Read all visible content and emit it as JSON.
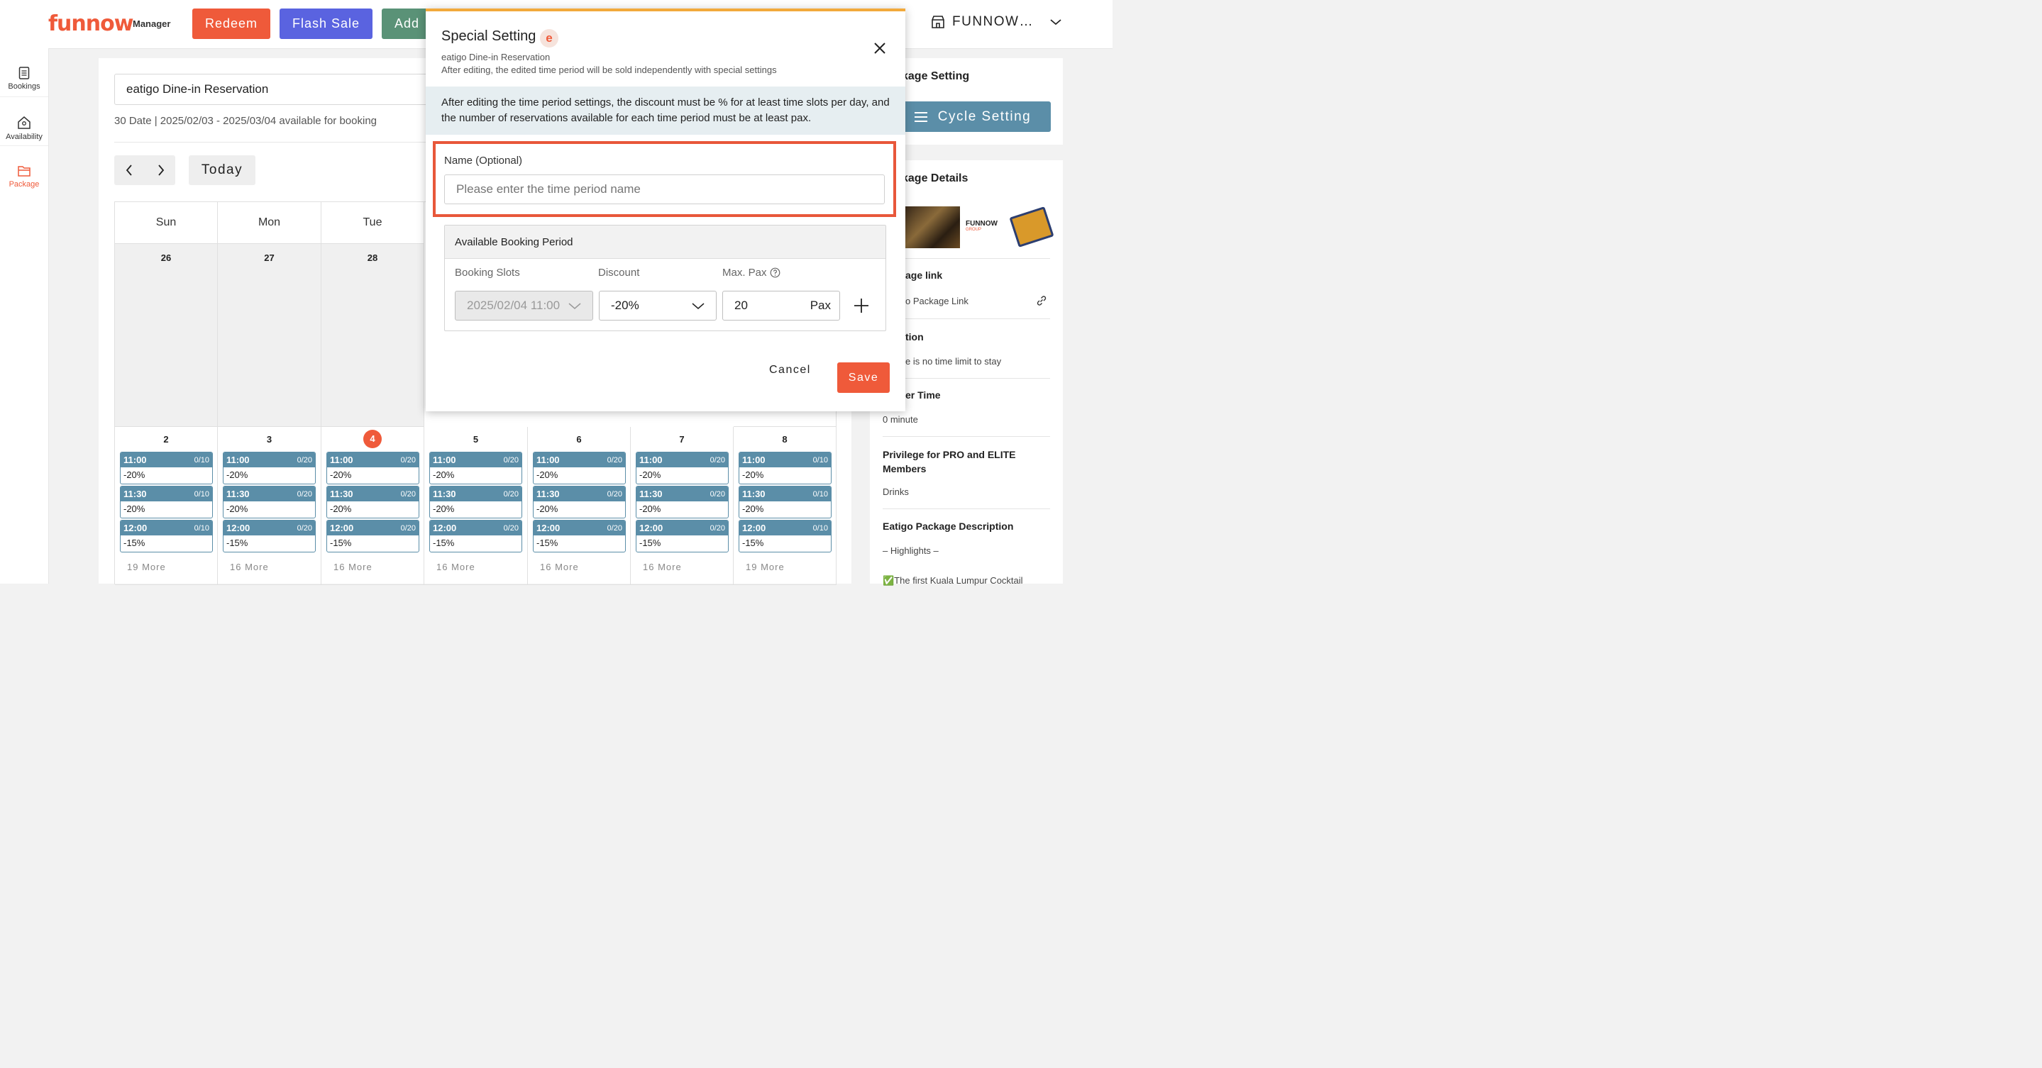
{
  "header": {
    "logo": "funnow",
    "logo_sub": "Manager",
    "buttons": [
      "Redeem",
      "Flash Sale",
      "Add"
    ],
    "store_name": "FUNNOW…"
  },
  "sidebar": {
    "items": [
      {
        "label": "Bookings",
        "icon": "document-icon"
      },
      {
        "label": "Availability",
        "icon": "home-icon"
      },
      {
        "label": "Package",
        "icon": "folder-icon",
        "active": true
      }
    ]
  },
  "main": {
    "package_name": "eatigo Dine-in Reservation",
    "date_info": "30 Date | 2025/02/03 - 2025/03/04 available for booking",
    "today_label": "Today",
    "weekdays": [
      "Sun",
      "Mon",
      "Tue"
    ],
    "week1_days": [
      "26",
      "27",
      "28"
    ],
    "week2": [
      {
        "day": "2",
        "slots": [
          {
            "time": "11:00",
            "cap": "0/10",
            "disc": "-20%"
          },
          {
            "time": "11:30",
            "cap": "0/10",
            "disc": "-20%"
          },
          {
            "time": "12:00",
            "cap": "0/10",
            "disc": "-15%"
          }
        ],
        "more": "19 More"
      },
      {
        "day": "3",
        "slots": [
          {
            "time": "11:00",
            "cap": "0/20",
            "disc": "-20%"
          },
          {
            "time": "11:30",
            "cap": "0/20",
            "disc": "-20%"
          },
          {
            "time": "12:00",
            "cap": "0/20",
            "disc": "-15%"
          }
        ],
        "more": "16 More"
      },
      {
        "day": "4",
        "today": true,
        "slots": [
          {
            "time": "11:00",
            "cap": "0/20",
            "disc": "-20%"
          },
          {
            "time": "11:30",
            "cap": "0/20",
            "disc": "-20%"
          },
          {
            "time": "12:00",
            "cap": "0/20",
            "disc": "-15%"
          }
        ],
        "more": "16 More"
      },
      {
        "day": "5",
        "slots": [
          {
            "time": "11:00",
            "cap": "0/20",
            "disc": "-20%"
          },
          {
            "time": "11:30",
            "cap": "0/20",
            "disc": "-20%"
          },
          {
            "time": "12:00",
            "cap": "0/20",
            "disc": "-15%"
          }
        ],
        "more": "16 More"
      },
      {
        "day": "6",
        "slots": [
          {
            "time": "11:00",
            "cap": "0/20",
            "disc": "-20%"
          },
          {
            "time": "11:30",
            "cap": "0/20",
            "disc": "-20%"
          },
          {
            "time": "12:00",
            "cap": "0/20",
            "disc": "-15%"
          }
        ],
        "more": "16 More"
      },
      {
        "day": "7",
        "slots": [
          {
            "time": "11:00",
            "cap": "0/20",
            "disc": "-20%"
          },
          {
            "time": "11:30",
            "cap": "0/20",
            "disc": "-20%"
          },
          {
            "time": "12:00",
            "cap": "0/20",
            "disc": "-15%"
          }
        ],
        "more": "16 More"
      },
      {
        "day": "8",
        "slots": [
          {
            "time": "11:00",
            "cap": "0/10",
            "disc": "-20%"
          },
          {
            "time": "11:30",
            "cap": "0/10",
            "disc": "-20%"
          },
          {
            "time": "12:00",
            "cap": "0/10",
            "disc": "-15%"
          }
        ],
        "more": "19 More"
      }
    ]
  },
  "right_panel": {
    "package_setting_title": "kage Setting",
    "cycle_setting": "Cycle Setting",
    "package_details_title": "kage Details",
    "brand_logo_text": "FUNNOW",
    "brand_logo_sub": "GROUP",
    "link_title": "age link",
    "link_text": "o Package Link",
    "duration_title": "tion",
    "duration_text": "e is no time limit to stay",
    "buffer_title": "er Time",
    "buffer_text": "0 minute",
    "privilege_title": "Privilege for PRO and ELITE Members",
    "privilege_text": "Drinks",
    "desc_title": "Eatigo Package Description",
    "desc_text": "– Highlights –",
    "desc_text2": "✅The first Kuala Lumpur Cocktail"
  },
  "modal": {
    "title": "Special Setting",
    "badge": "e",
    "subtitle1": "eatigo Dine-in Reservation",
    "subtitle2": "After editing, the edited time period will be sold independently with special settings",
    "notice": "After editing the time period settings, the discount must be % for at least time slots per day, and the number of reservations available for each time period must be at least pax.",
    "name_label": "Name (Optional)",
    "name_placeholder": "Please enter the time period name",
    "period_title": "Available Booking Period",
    "col_slots": "Booking Slots",
    "col_discount": "Discount",
    "col_maxpax": "Max. Pax",
    "slot_value": "2025/02/04 11:00",
    "discount_value": "-20%",
    "maxpax_value": "20",
    "pax_unit": "Pax",
    "cancel": "Cancel",
    "save": "Save"
  },
  "colors": {
    "brand": "#ef5a3a",
    "flash_sale": "#5a63e0",
    "add": "#5a9277",
    "slot": "#5b8ea8",
    "modal_top": "#f2a93b"
  }
}
